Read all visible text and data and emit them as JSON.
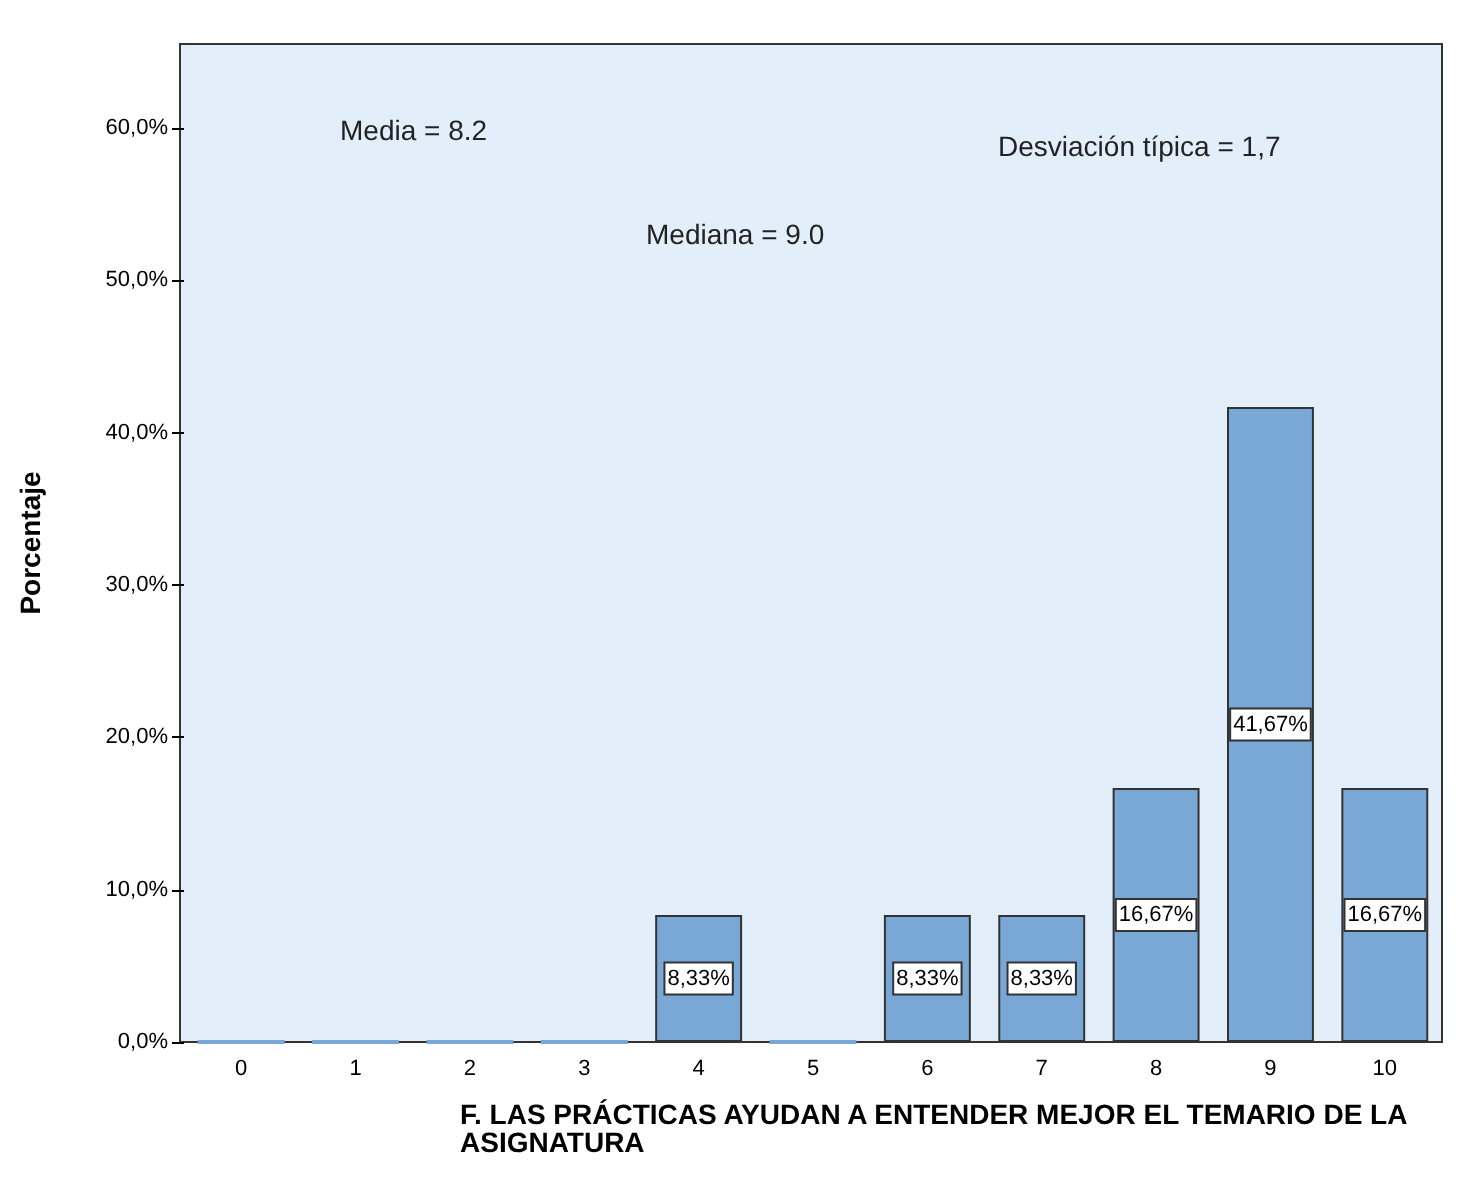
{
  "chart_data": {
    "type": "bar",
    "ylabel": "Porcentaje",
    "xlabel": "F. LAS PRÁCTICAS AYUDAN A ENTENDER MEJOR EL TEMARIO DE LA ASIGNATURA",
    "categories": [
      "0",
      "1",
      "2",
      "3",
      "4",
      "5",
      "6",
      "7",
      "8",
      "9",
      "10"
    ],
    "values": [
      0,
      0,
      0,
      0,
      8.33,
      0,
      8.33,
      8.33,
      16.67,
      41.67,
      16.67
    ],
    "value_labels": [
      null,
      null,
      null,
      null,
      "8,33%",
      null,
      "8,33%",
      "8,33%",
      "16,67%",
      "41,67%",
      "16,67%"
    ],
    "color": "#79a8d6",
    "ylim": [
      0,
      65.5
    ],
    "yticks": [
      {
        "value": 0,
        "label": "0,0%"
      },
      {
        "value": 10,
        "label": "10,0%"
      },
      {
        "value": 20,
        "label": "20,0%"
      },
      {
        "value": 30,
        "label": "30,0%"
      },
      {
        "value": 40,
        "label": "40,0%"
      },
      {
        "value": 50,
        "label": "50,0%"
      },
      {
        "value": 60,
        "label": "60,0%"
      }
    ],
    "annotations": [
      "Media = 8.2",
      "Mediana = 9.0",
      "Desviación típica = 1,7"
    ],
    "grid": false
  }
}
